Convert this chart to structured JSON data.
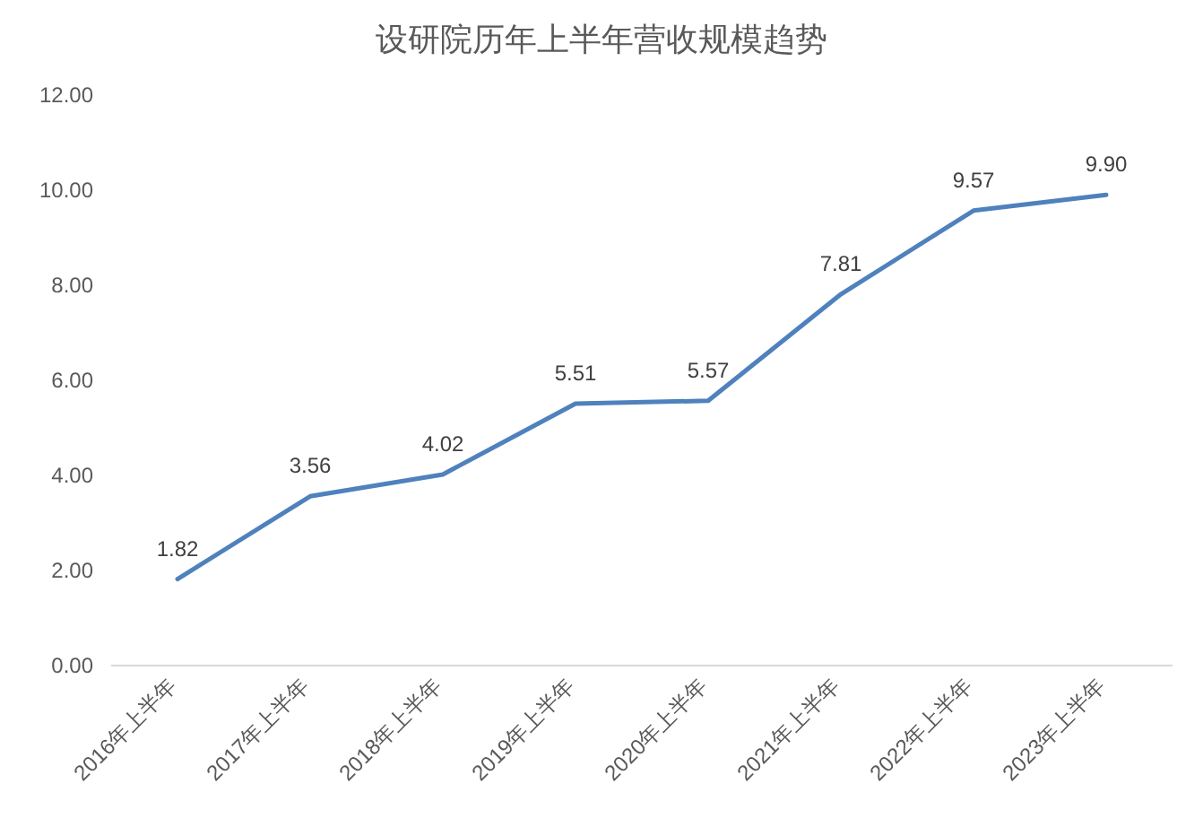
{
  "chart_data": {
    "type": "line",
    "title": "设研院历年上半年营收规模趋势",
    "categories": [
      "2016年上半年",
      "2017年上半年",
      "2018年上半年",
      "2019年上半年",
      "2020年上半年",
      "2021年上半年",
      "2022年上半年",
      "2023年上半年"
    ],
    "series": [
      {
        "color": "#4f81bd",
        "values": [
          1.82,
          3.56,
          4.02,
          5.51,
          5.57,
          7.81,
          9.57,
          9.9
        ],
        "value_labels": [
          "1.82",
          "3.56",
          "4.02",
          "5.51",
          "5.57",
          "7.81",
          "9.57",
          "9.90"
        ]
      }
    ],
    "ylim": [
      0,
      12
    ],
    "yticks": [
      {
        "value": 0,
        "label": "0.00"
      },
      {
        "value": 2,
        "label": "2.00"
      },
      {
        "value": 4,
        "label": "4.00"
      },
      {
        "value": 6,
        "label": "6.00"
      },
      {
        "value": 8,
        "label": "8.00"
      },
      {
        "value": 10,
        "label": "10.00"
      },
      {
        "value": 12,
        "label": "12.00"
      }
    ],
    "grid": false,
    "marker": "none",
    "line_style": "solid"
  }
}
